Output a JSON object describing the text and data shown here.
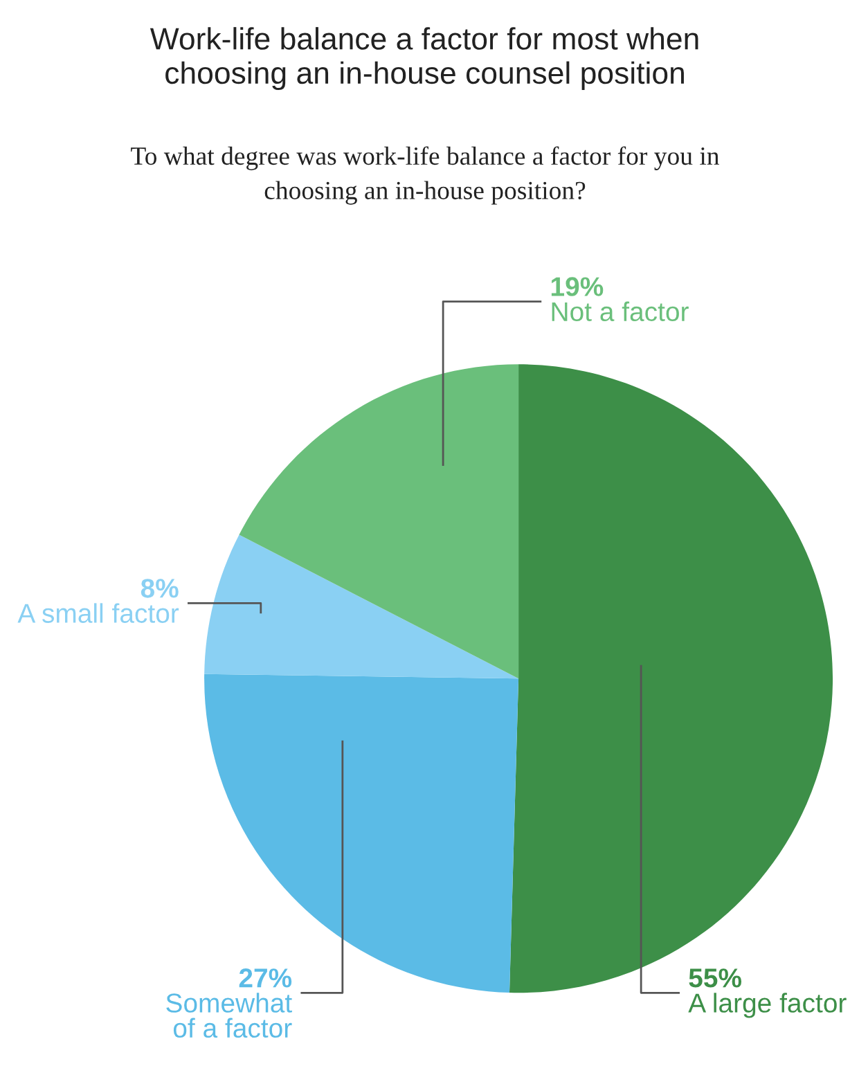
{
  "chart_data": {
    "type": "pie",
    "title": "Work-life balance a factor for most when\nchoosing an in-house counsel position",
    "subtitle": "To what degree was work-life balance a factor for you in\nchoosing an in-house position?",
    "categories": [
      "A large factor",
      "Somewhat\nof a factor",
      "A small factor",
      "Not a factor"
    ],
    "values": [
      55,
      27,
      8,
      19
    ],
    "colors": [
      "#3d8f48",
      "#5bbbe6",
      "#8ad0f3",
      "#6abf7b"
    ],
    "value_labels": [
      "55%",
      "27%",
      "8%",
      "19%"
    ]
  }
}
